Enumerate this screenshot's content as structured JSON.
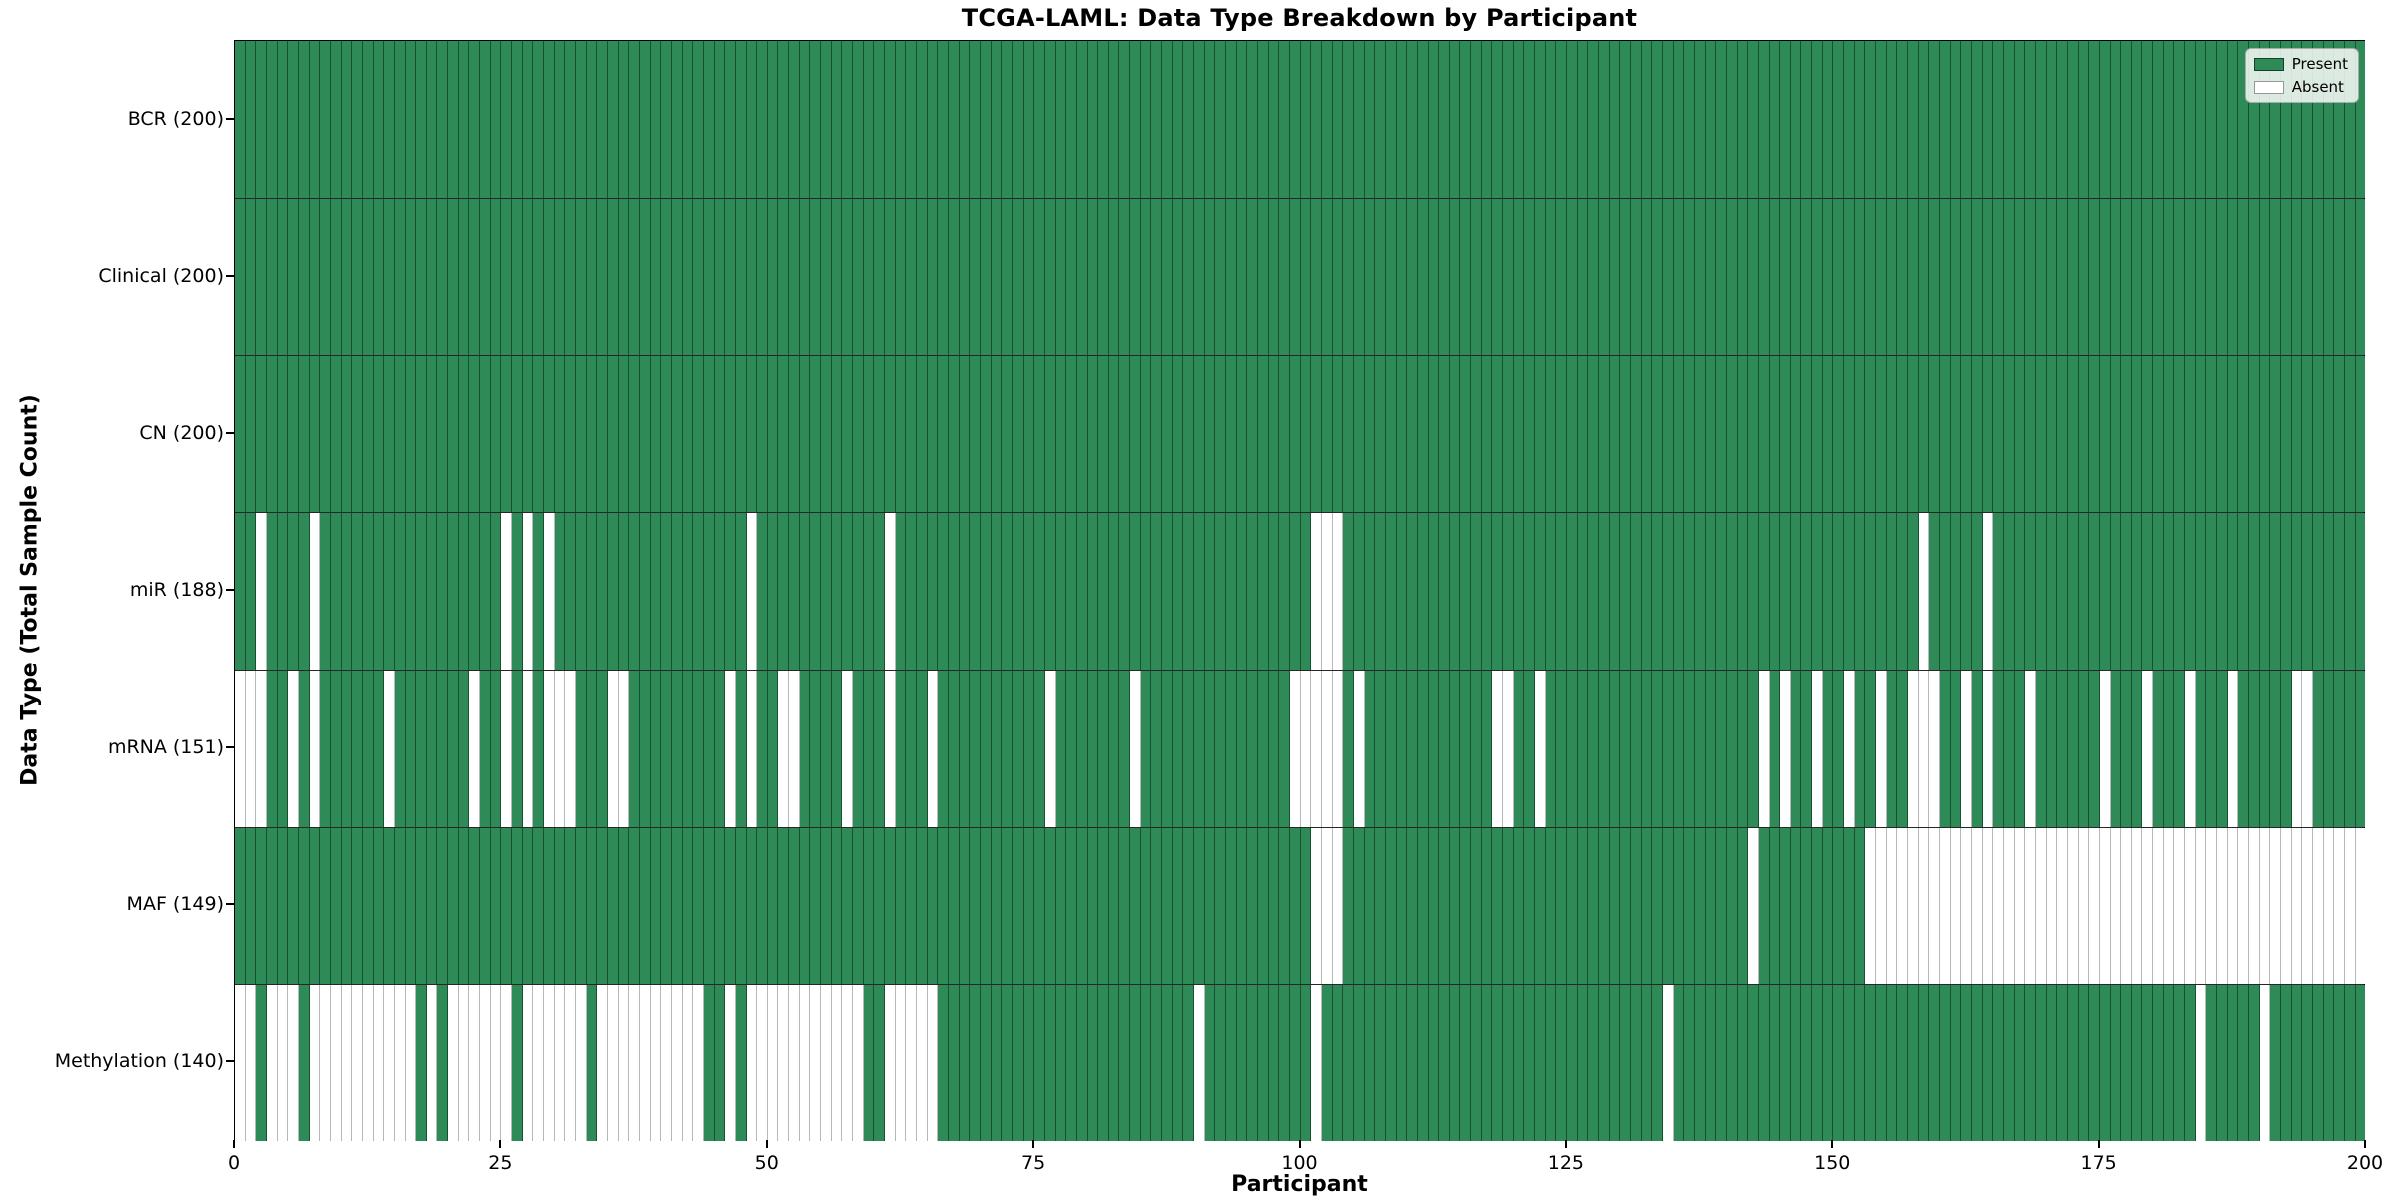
{
  "title": "TCGA-LAML: Data Type Breakdown by Participant",
  "axes": {
    "x_label": "Participant",
    "y_label": "Data Type (Total Sample Count)"
  },
  "legend": {
    "present_label": "Present",
    "absent_label": "Absent"
  },
  "colors": {
    "present": "#2E8B57",
    "absent": "#FFFFFF",
    "row_separator": "#1a1a1a",
    "plot_border": "#000000"
  },
  "chart_data": {
    "type": "heatmap",
    "title": "TCGA-LAML: Data Type Breakdown by Participant",
    "xlabel": "Participant",
    "ylabel": "Data Type (Total Sample Count)",
    "x_range": [
      0,
      200
    ],
    "n_participants": 200,
    "x_ticks": [
      0,
      25,
      50,
      75,
      100,
      125,
      150,
      175,
      200
    ],
    "legend_entries": [
      "Present",
      "Absent"
    ],
    "legend_position": "upper right",
    "grid": false,
    "rows": [
      {
        "label": "BCR (200)",
        "data_type": "BCR",
        "present_count": 200,
        "absent_participants": []
      },
      {
        "label": "Clinical (200)",
        "data_type": "Clinical",
        "present_count": 200,
        "absent_participants": []
      },
      {
        "label": "CN (200)",
        "data_type": "CN",
        "present_count": 200,
        "absent_participants": []
      },
      {
        "label": "miR (188)",
        "data_type": "miR",
        "present_count": 188,
        "absent_participants": [
          2,
          7,
          25,
          27,
          29,
          48,
          61,
          101,
          102,
          103,
          158,
          164
        ]
      },
      {
        "label": "mRNA (151)",
        "data_type": "mRNA",
        "present_count": 151,
        "absent_participants": [
          0,
          1,
          2,
          5,
          7,
          14,
          22,
          25,
          27,
          29,
          30,
          31,
          35,
          36,
          46,
          48,
          51,
          52,
          57,
          61,
          65,
          76,
          84,
          99,
          100,
          101,
          102,
          103,
          105,
          118,
          119,
          122,
          143,
          145,
          148,
          151,
          154,
          157,
          158,
          159,
          162,
          164,
          168,
          175,
          179,
          183,
          187,
          193,
          194
        ]
      },
      {
        "label": "MAF (149)",
        "data_type": "MAF",
        "present_count": 149,
        "absent_participants": [
          101,
          102,
          103,
          142,
          153,
          154,
          155,
          156,
          157,
          158,
          159,
          160,
          161,
          162,
          163,
          164,
          165,
          166,
          167,
          168,
          169,
          170,
          171,
          172,
          173,
          174,
          175,
          176,
          177,
          178,
          179,
          180,
          181,
          182,
          183,
          184,
          185,
          186,
          187,
          188,
          189,
          190,
          191,
          192,
          193,
          194,
          195,
          196,
          197,
          198,
          199
        ]
      },
      {
        "label": "Methylation (140)",
        "data_type": "Methylation",
        "present_count": 140,
        "absent_participants": [
          0,
          1,
          3,
          4,
          5,
          7,
          8,
          9,
          10,
          11,
          12,
          13,
          14,
          15,
          16,
          18,
          20,
          21,
          22,
          23,
          24,
          25,
          27,
          28,
          29,
          30,
          31,
          32,
          34,
          35,
          36,
          37,
          38,
          39,
          40,
          41,
          42,
          43,
          46,
          48,
          49,
          50,
          51,
          52,
          53,
          54,
          55,
          56,
          57,
          58,
          61,
          62,
          63,
          64,
          65,
          90,
          101,
          134,
          184,
          190
        ]
      }
    ]
  }
}
